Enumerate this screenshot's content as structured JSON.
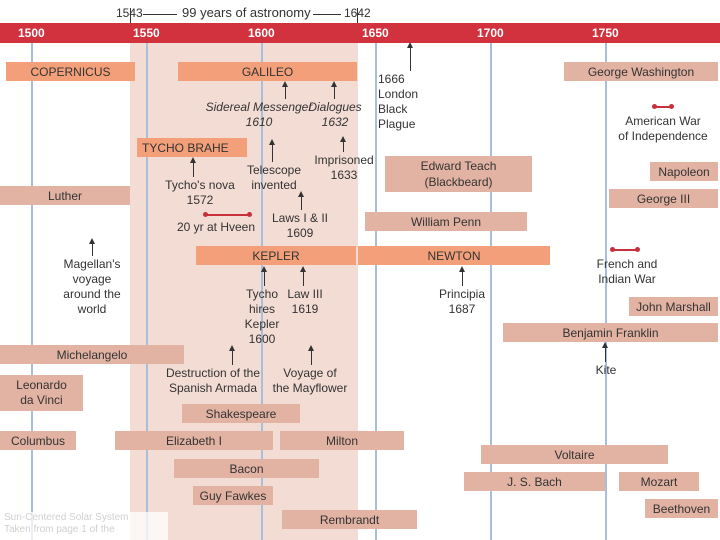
{
  "header": {
    "start_year": "1543",
    "span_label": "99 years of astronomy",
    "end_year": "1642"
  },
  "axis": {
    "ticks": [
      "1500",
      "1550",
      "1600",
      "1650",
      "1700",
      "1750"
    ]
  },
  "bars": {
    "copernicus": "COPERNICUS",
    "galileo": "GALILEO",
    "tycho_brahe": "TYCHO BRAHE",
    "kepler": "KEPLER",
    "newton": "NEWTON",
    "luther": "Luther",
    "michelangelo": "Michelangelo",
    "leonardo": "Leonardo\nda Vinci",
    "columbus": "Columbus",
    "shakespeare": "Shakespeare",
    "elizabeth": "Elizabeth I",
    "milton": "Milton",
    "bacon": "Bacon",
    "guy_fawkes": "Guy Fawkes",
    "rembrandt": "Rembrandt",
    "edward_teach": "Edward Teach\n(Blackbeard)",
    "william_penn": "William Penn",
    "george_washington": "George Washington",
    "napoleon": "Napoleon",
    "george_iii": "George III",
    "john_marshall": "John Marshall",
    "benjamin_franklin": "Benjamin Franklin",
    "voltaire": "Voltaire",
    "js_bach": "J. S. Bach",
    "mozart": "Mozart",
    "beethoven": "Beethoven"
  },
  "events": {
    "sidereal": "Sidereal Messenger\n1610",
    "dialogues": "Dialogues\n1632",
    "imprisoned": "Imprisoned\n1633",
    "plague": "1666 London\nBlack Plague",
    "tychos_nova": "Tycho's nova\n1572",
    "telescope": "Telescope\ninvented",
    "hveen": "20 yr at Hveen",
    "laws_12": "Laws I & II\n1609",
    "magellan": "Magellan's\nvoyage\naround the\nworld",
    "tycho_hires": "Tycho\nhires\nKepler\n1600",
    "law_3": "Law III\n1619",
    "principia": "Principia\n1687",
    "armada": "Destruction of the\nSpanish Armada",
    "mayflower": "Voyage of\nthe Mayflower",
    "american_war": "American War\nof Independence",
    "french_indian": "French and\nIndian War",
    "kite": "Kite"
  },
  "footer": {
    "faded_text": "Sun-Centered Solar System\nTaken from page 1 of the"
  }
}
